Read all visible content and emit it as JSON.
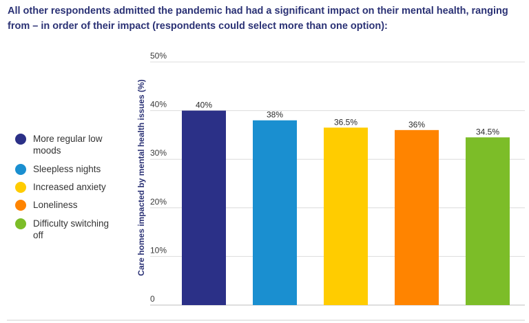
{
  "intro_text": "All other respondents admitted the pandemic had had a significant impact on their mental health, ranging from – in order of their impact (respondents could select more than one option):",
  "chart_data": {
    "type": "bar",
    "title": "",
    "xlabel": "",
    "ylabel": "Care homes impacted by mental health issues (%)",
    "ylim": [
      0,
      50
    ],
    "yticks": [
      0,
      10,
      20,
      30,
      40,
      50
    ],
    "ytick_labels": [
      "0",
      "10%",
      "20%",
      "30%",
      "40%",
      "50%"
    ],
    "grid": true,
    "legend_position": "left",
    "categories": [
      "More regular low moods",
      "Sleepless nights",
      "Increased anxiety",
      "Loneliness",
      "Difficulty switching off"
    ],
    "values": [
      40,
      38,
      36.5,
      36,
      34.5
    ],
    "value_labels": [
      "40%",
      "38%",
      "36.5%",
      "36%",
      "34.5%"
    ],
    "colors": [
      "#2b3087",
      "#1a8fd0",
      "#ffcc00",
      "#ff8400",
      "#7cbd28"
    ]
  }
}
